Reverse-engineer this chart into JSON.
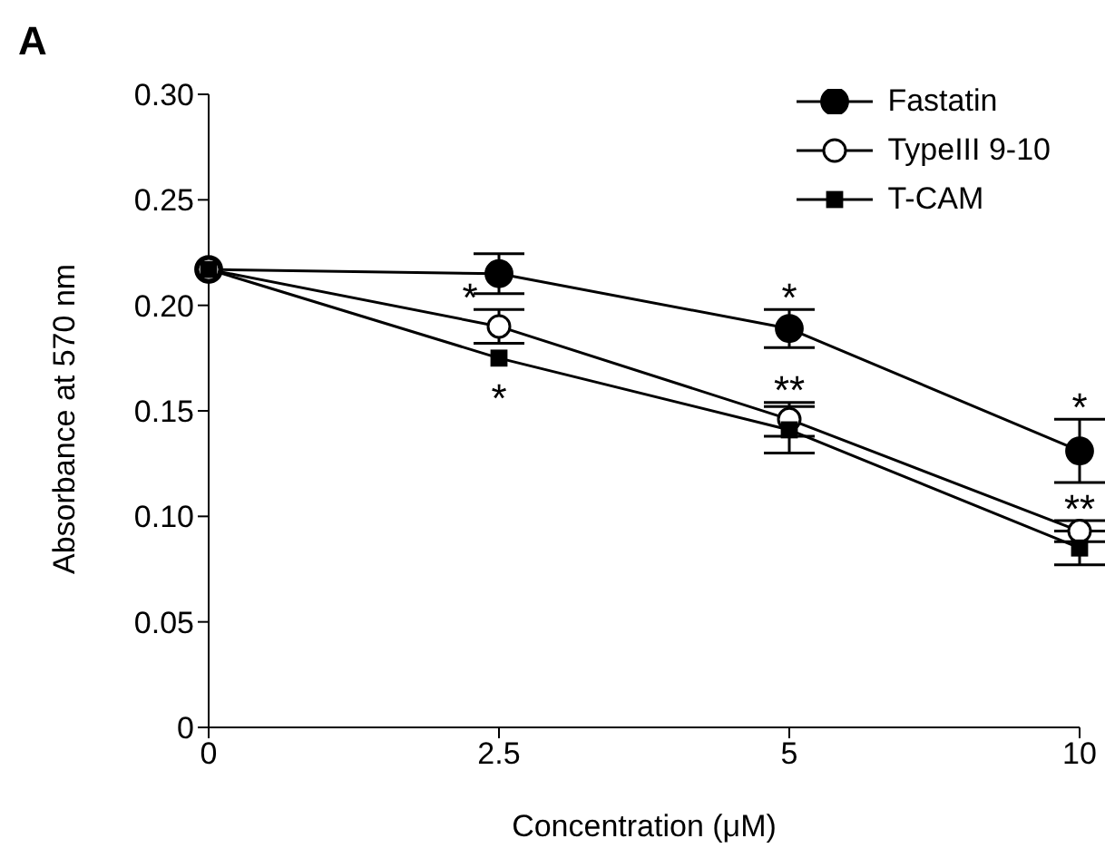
{
  "chart_data": {
    "type": "line",
    "xlabel": "Concentration (μM)",
    "ylabel": "Absorbance at 570 nm",
    "categories": [
      "0",
      "2.5",
      "5",
      "10"
    ],
    "series": [
      {
        "name": "Fastatin",
        "color": "#000000",
        "marker": "circle",
        "values": [
          0.217,
          0.215,
          0.189,
          0.131
        ],
        "errors": [
          null,
          0.0095,
          0.009,
          0.015
        ]
      },
      {
        "name": "TypeIII 9-10",
        "color": "#000000",
        "marker": "open circle",
        "values": [
          0.217,
          0.19,
          0.146,
          0.093
        ],
        "errors": [
          null,
          0.008,
          0.008,
          0.005
        ]
      },
      {
        "name": "T-CAM",
        "color": "#000000",
        "marker": "square",
        "values": [
          0.217,
          0.175,
          0.141,
          0.085
        ],
        "errors": [
          null,
          null,
          0.011,
          0.008
        ]
      }
    ],
    "ylim": [
      0,
      0.3
    ],
    "yticks": [
      0,
      {
        "value": 0.05,
        "label": "0.05"
      },
      {
        "value": 0.1,
        "label": "0.10"
      },
      {
        "value": 0.15,
        "label": "0.15"
      },
      {
        "value": 0.2,
        "label": "0.20"
      },
      {
        "value": 0.25,
        "label": "0.25"
      },
      {
        "value": 0.3,
        "label": "0.30"
      }
    ],
    "grid": false,
    "legend": "top right",
    "line_style": "solid",
    "annotations": [
      "A",
      {
        "text": "*",
        "x": "2.5",
        "y": 0.19
      },
      {
        "text": "*",
        "x": "2.5",
        "y": 0.175
      },
      {
        "text": "*",
        "x": "5",
        "y": 0.189
      },
      {
        "text": "**",
        "x": "5",
        "y": 0.146
      },
      {
        "text": "*",
        "x": "10",
        "y": 0.131
      },
      {
        "text": "**",
        "x": "10",
        "y": 0.093
      }
    ]
  }
}
